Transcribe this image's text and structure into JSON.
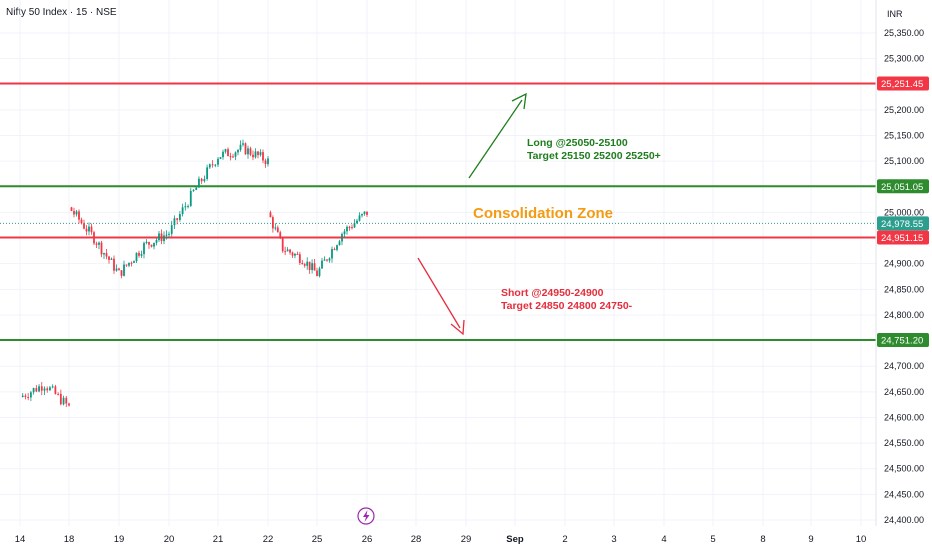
{
  "header": {
    "title": "Nifty 50 Index · 15 · NSE",
    "currency": "INR"
  },
  "icons": {
    "bottom_marker": "lightning-icon"
  },
  "colors": {
    "resistance": "#f23645",
    "support": "#2e8b2e",
    "long_text": "#1e7e1e",
    "short_text": "#e52d3c",
    "zone_text": "#f39c12",
    "candle_up": "#089981",
    "candle_down": "#f23645",
    "current_price": "#2b9e8e"
  },
  "chart_data": {
    "type": "candlestick",
    "title": "Nifty 50 Index · 15 · NSE",
    "ylim": [
      24400,
      25375
    ],
    "y_ticks": [
      "25,350.00",
      "25,300.00",
      "25,250.00",
      "25,200.00",
      "25,150.00",
      "25,100.00",
      "25,050.00",
      "25,000.00",
      "24,950.00",
      "24,900.00",
      "24,850.00",
      "24,800.00",
      "24,750.00",
      "24,700.00",
      "24,650.00",
      "24,600.00",
      "24,550.00",
      "24,500.00",
      "24,450.00",
      "24,400.00"
    ],
    "x_ticks": [
      "14",
      "18",
      "19",
      "20",
      "21",
      "22",
      "25",
      "26",
      "28",
      "29",
      "Sep",
      "2",
      "3",
      "4",
      "5",
      "8",
      "9",
      "10"
    ],
    "x_ticks_bold": [
      "Sep"
    ],
    "horizontal_levels": [
      {
        "value": 25251.45,
        "label": "25,251.45",
        "role": "resistance"
      },
      {
        "value": 25051.05,
        "label": "25,051.05",
        "role": "support"
      },
      {
        "value": 24951.15,
        "label": "24,951.15",
        "role": "resistance"
      },
      {
        "value": 24751.2,
        "label": "24,751.20",
        "role": "support"
      }
    ],
    "current_price": {
      "value": 24978.55,
      "label": "24,978.55"
    },
    "price_path": [
      {
        "x": "14",
        "y": 24640
      },
      {
        "x": "14.5",
        "y": 24665
      },
      {
        "x": "18",
        "y": 24620
      },
      {
        "x": "18",
        "y": 25010
      },
      {
        "x": "18.5",
        "y": 24950
      },
      {
        "x": "19",
        "y": 24880
      },
      {
        "x": "19.5",
        "y": 24935
      },
      {
        "x": "20",
        "y": 24960
      },
      {
        "x": "20.5",
        "y": 25040
      },
      {
        "x": "21",
        "y": 25110
      },
      {
        "x": "21.5",
        "y": 25125
      },
      {
        "x": "22",
        "y": 25100
      },
      {
        "x": "22",
        "y": 25000
      },
      {
        "x": "22.3",
        "y": 24930
      },
      {
        "x": "22.7",
        "y": 24910
      },
      {
        "x": "25",
        "y": 24880
      },
      {
        "x": "25.5",
        "y": 24960
      },
      {
        "x": "26",
        "y": 25000
      },
      {
        "x": "26",
        "y": 24978.55
      }
    ],
    "annotations": {
      "long": {
        "line1": "Long @25050-25100",
        "line2": "Target 25150 25200 25250+"
      },
      "short": {
        "line1": "Short @24950-24900",
        "line2": "Target 24850 24800 24750-"
      },
      "zone": "Consolidation Zone"
    }
  }
}
